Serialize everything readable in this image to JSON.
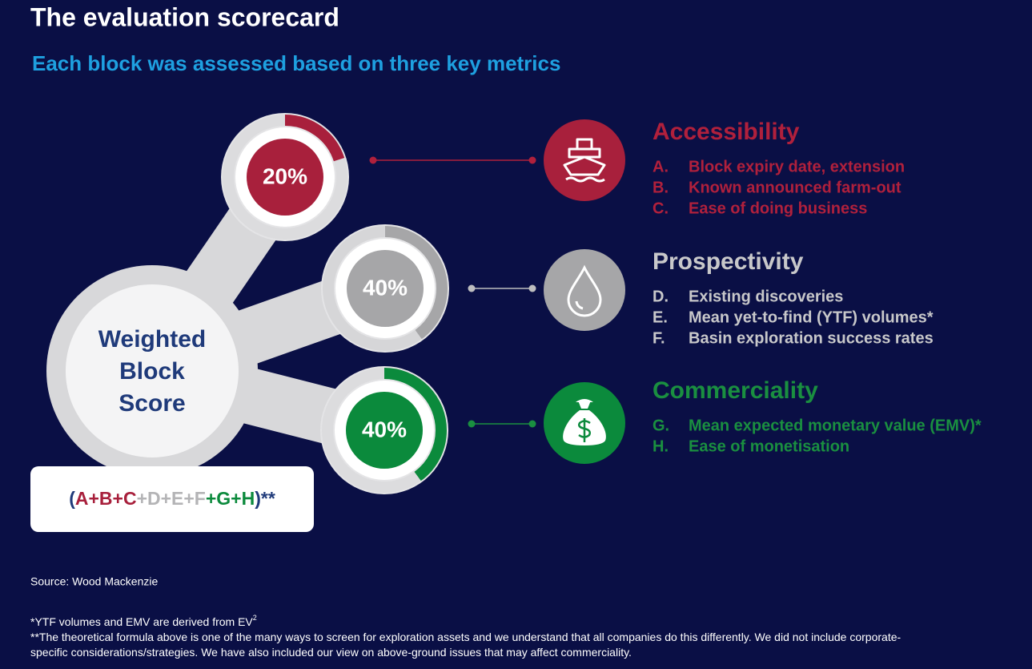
{
  "header": {
    "title": "The evaluation scorecard",
    "subtitle": "Each block was assessed based on three key metrics"
  },
  "center": {
    "lines": [
      "Weighted",
      "Block",
      "Score"
    ]
  },
  "formula": {
    "parts": [
      "(",
      "A+B+C",
      "+D+E+F",
      "+G+H",
      ")**"
    ]
  },
  "metrics": [
    {
      "share": 20,
      "share_label": "20%",
      "heading": "Accessibility",
      "items": [
        {
          "letter": "A.",
          "text": "Block expiry date, extension"
        },
        {
          "letter": "B.",
          "text": "Known announced farm-out"
        },
        {
          "letter": "C.",
          "text": "Ease of doing business"
        }
      ]
    },
    {
      "share": 40,
      "share_label": "40%",
      "heading": "Prospectivity",
      "items": [
        {
          "letter": "D.",
          "text": "Existing discoveries"
        },
        {
          "letter": "E.",
          "text": "Mean yet-to-find (YTF) volumes*"
        },
        {
          "letter": "F.",
          "text": "Basin exploration success rates"
        }
      ]
    },
    {
      "share": 40,
      "share_label": "40%",
      "heading": "Commerciality",
      "items": [
        {
          "letter": "G.",
          "text": "Mean expected monetary value (EMV)*"
        },
        {
          "letter": "H.",
          "text": "Ease of monetisation"
        }
      ]
    }
  ],
  "source": "Source: Wood Mackenzie",
  "footnotes": [
    {
      "text": "*YTF volumes and EMV are derived from EV",
      "sup": "2"
    },
    {
      "text": "**The theoretical formula above is one of the many ways to screen for exploration assets and we understand that all companies do this differently. We did not include corporate-"
    },
    {
      "text": "specific considerations/strategies. We have also included our view on above-ground issues that may affect commerciality."
    }
  ]
}
